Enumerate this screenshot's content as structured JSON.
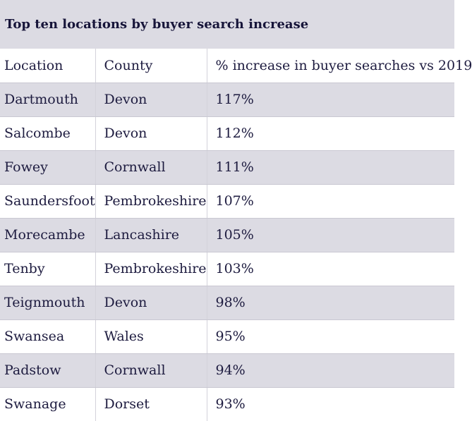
{
  "chart_data": {
    "type": "table",
    "title": "Top ten locations by buyer search increase",
    "columns": [
      "Location",
      "County",
      "% increase in buyer searches vs 2019"
    ],
    "rows": [
      [
        "Dartmouth",
        "Devon",
        "117%"
      ],
      [
        "Salcombe",
        "Devon",
        "112%"
      ],
      [
        "Fowey",
        "Cornwall",
        "111%"
      ],
      [
        "Saundersfoot",
        "Pembrokeshire",
        "107%"
      ],
      [
        "Morecambe",
        "Lancashire",
        "105%"
      ],
      [
        "Tenby",
        "Pembrokeshire",
        "103%"
      ],
      [
        "Teignmouth",
        "Devon",
        "98%"
      ],
      [
        "Swansea",
        "Wales",
        "95%"
      ],
      [
        "Padstow",
        "Cornwall",
        "94%"
      ],
      [
        "Swanage",
        "Dorset",
        "93%"
      ]
    ]
  },
  "colors": {
    "banded_row": "#dcdbe3",
    "text": "#1d1b3f"
  }
}
